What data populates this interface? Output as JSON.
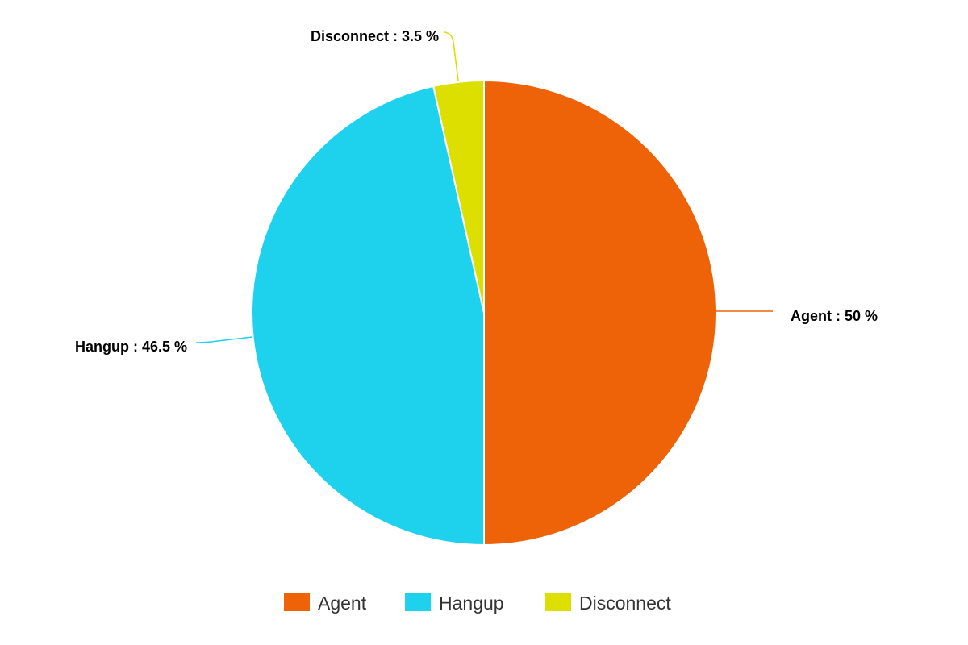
{
  "chart_data": {
    "type": "pie",
    "slices": [
      {
        "label": "Agent",
        "value": 50,
        "color": "#EE6208",
        "display": "Agent : 50 %"
      },
      {
        "label": "Hangup",
        "value": 46.5,
        "color": "#1ED2ED",
        "display": "Hangup : 46.5 %"
      },
      {
        "label": "Disconnect",
        "value": 3.5,
        "color": "#DCDF00",
        "display": "Disconnect : 3.5 %"
      }
    ],
    "start_angle_deg": 0,
    "direction": "clockwise",
    "legend": {
      "position": "bottom",
      "entries": [
        "Agent",
        "Hangup",
        "Disconnect"
      ]
    }
  }
}
